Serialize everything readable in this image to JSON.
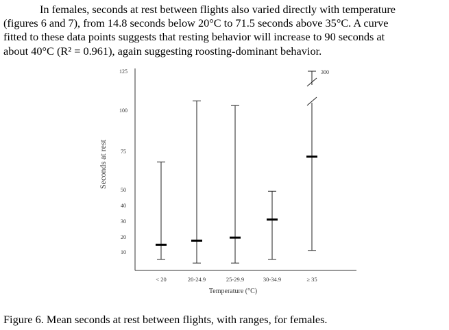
{
  "paragraph": {
    "lines": [
      "In females, seconds at rest between flights also varied directly with temperature",
      "(figures 6 and 7), from 14.8 seconds below 20°C to 71.5 seconds above 35°C. A curve",
      "fitted to these data points suggests that resting behavior will increase to 90 seconds at",
      "about 40°C (R² = 0.961), again suggesting roosting-dominant behavior."
    ]
  },
  "chart_data": {
    "type": "error-bar",
    "title": "",
    "xlabel": "Temperature (°C)",
    "ylabel": "Seconds at rest",
    "categories": [
      "< 20",
      "20-24.9",
      "25-29.9",
      "30-34.9",
      "≥ 35"
    ],
    "y_ticks": [
      {
        "label": "10",
        "value": 10
      },
      {
        "label": "20",
        "value": 20
      },
      {
        "label": "30",
        "value": 30
      },
      {
        "label": "40",
        "value": 40
      },
      {
        "label": "50",
        "value": 50
      },
      {
        "label": "75",
        "value": 75
      },
      {
        "label": "100",
        "value": 100
      },
      {
        "label": "125",
        "value": 125
      }
    ],
    "series": [
      {
        "points": [
          {
            "category": "< 20",
            "mean": 14.8,
            "min": 6,
            "max": 68
          },
          {
            "category": "20-24.9",
            "mean": 17.5,
            "min": 4,
            "max": 106
          },
          {
            "category": "25-29.9",
            "mean": 19.5,
            "min": 4,
            "max": 103
          },
          {
            "category": "30-34.9",
            "mean": 31,
            "min": 6,
            "max": 49
          },
          {
            "category": "≥ 35",
            "mean": 71.5,
            "min": 11,
            "max": 300
          }
        ]
      }
    ],
    "axis_break": {
      "at": 110,
      "top_label": "300",
      "top_value": 300
    },
    "grid": false,
    "legend": "none"
  },
  "caption": "Figure 6. Mean seconds at rest between flights, with ranges, for females."
}
